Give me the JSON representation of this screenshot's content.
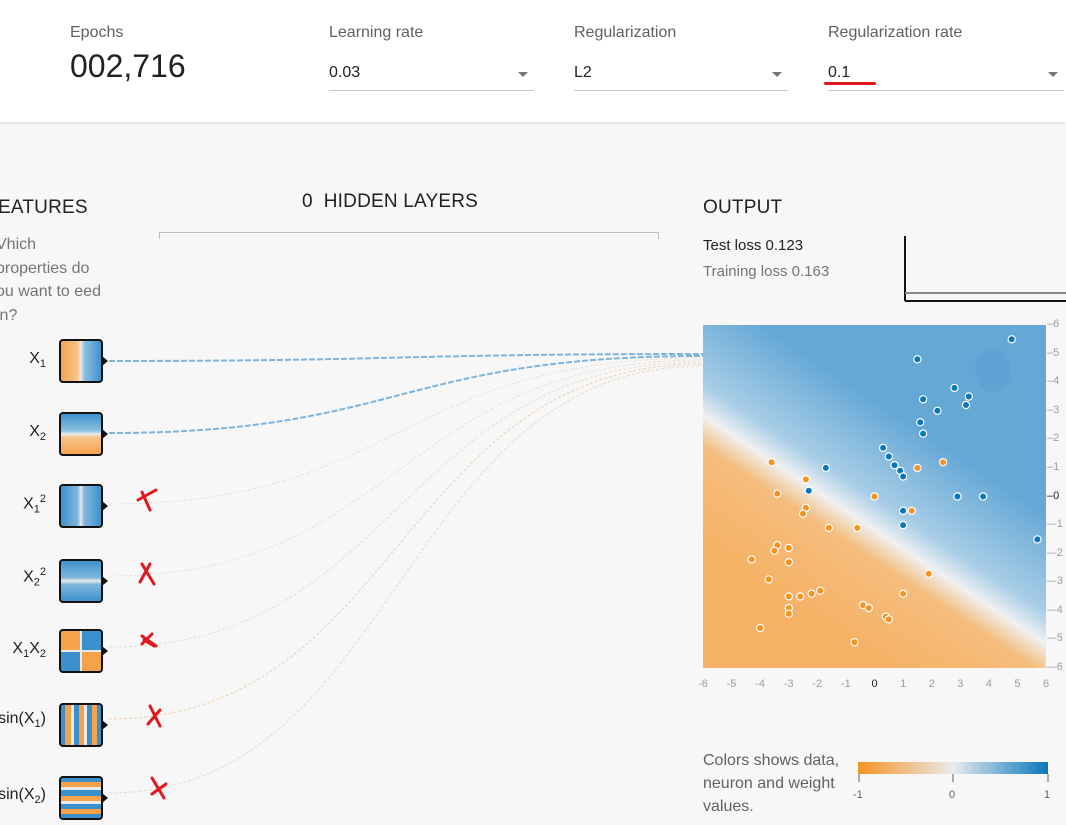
{
  "controls": {
    "epochs_label": "Epochs",
    "epochs_value": "002,716",
    "learning_rate_label": "Learning rate",
    "learning_rate_value": "0.03",
    "regularization_label": "Regularization",
    "regularization_value": "L2",
    "regularization_rate_label": "Regularization rate",
    "regularization_rate_value": "0.1"
  },
  "features": {
    "title": "EATURES",
    "question": "Vhich properties do ou want to eed in?",
    "items": [
      {
        "label_main": "X",
        "sub": "1",
        "sup": "",
        "selected": true
      },
      {
        "label_main": "X",
        "sub": "2",
        "sup": "",
        "selected": true
      },
      {
        "label_main": "X",
        "sub": "1",
        "sup": "2",
        "selected": false
      },
      {
        "label_main": "X",
        "sub": "2",
        "sup": "2",
        "selected": false
      },
      {
        "label_main": "X1X2",
        "sub": "",
        "sup": "",
        "selected": false
      },
      {
        "label_main": "sin(X1)",
        "sub": "",
        "sup": "",
        "selected": false
      },
      {
        "label_main": "sin(X2)",
        "sub": "",
        "sup": "",
        "selected": false
      }
    ]
  },
  "hidden_layers": {
    "count": "0",
    "label": "HIDDEN LAYERS"
  },
  "output": {
    "title": "OUTPUT",
    "test_loss": "Test loss 0.123",
    "training_loss": "Training loss 0.163"
  },
  "legend": {
    "text": "Colors shows data, neuron and weight values.",
    "min": "-1",
    "mid": "0",
    "max": "1"
  },
  "colors": {
    "orange": "#f59322",
    "blue": "#0877bd",
    "light_blue": "#65a8d6",
    "light_orange": "#f5b266",
    "annotation_red": "#e0181e"
  },
  "chart_data": {
    "type": "scatter",
    "x_ticks": [
      "-6",
      "-5",
      "-4",
      "-3",
      "-2",
      "-1",
      "0",
      "1",
      "2",
      "3",
      "4",
      "5",
      "6"
    ],
    "y_ticks": [
      "6",
      "5",
      "4",
      "3",
      "2",
      "1",
      "0",
      "-1",
      "-2",
      "-3",
      "-4",
      "-5",
      "-6"
    ],
    "xlim": [
      -6,
      6
    ],
    "ylim": [
      -6,
      6
    ],
    "series": [
      {
        "color": "#0877bd",
        "points": [
          [
            4.8,
            5.5
          ],
          [
            1.5,
            4.8
          ],
          [
            2.8,
            3.8
          ],
          [
            1.7,
            3.4
          ],
          [
            3.3,
            3.5
          ],
          [
            2.2,
            3.0
          ],
          [
            3.2,
            3.2
          ],
          [
            1.6,
            2.6
          ],
          [
            1.7,
            2.2
          ],
          [
            0.3,
            1.7
          ],
          [
            0.5,
            1.4
          ],
          [
            -1.7,
            1.0
          ],
          [
            0.7,
            1.1
          ],
          [
            0.9,
            0.9
          ],
          [
            1.0,
            0.7
          ],
          [
            -2.3,
            0.2
          ],
          [
            2.9,
            0.0
          ],
          [
            3.8,
            0.0
          ],
          [
            1.0,
            -0.5
          ],
          [
            1.0,
            -1.0
          ],
          [
            5.7,
            -1.5
          ]
        ]
      },
      {
        "color": "#f59322",
        "points": [
          [
            -3.6,
            1.2
          ],
          [
            2.4,
            1.2
          ],
          [
            1.5,
            1.0
          ],
          [
            -2.4,
            0.6
          ],
          [
            -3.4,
            0.1
          ],
          [
            -2.4,
            -0.4
          ],
          [
            0.0,
            0.0
          ],
          [
            1.3,
            -0.5
          ],
          [
            -2.5,
            -0.6
          ],
          [
            -1.6,
            -1.1
          ],
          [
            -0.6,
            -1.1
          ],
          [
            -3.4,
            -1.7
          ],
          [
            -3.0,
            -1.8
          ],
          [
            -3.5,
            -1.9
          ],
          [
            -4.3,
            -2.2
          ],
          [
            -3.0,
            -2.3
          ],
          [
            1.9,
            -2.7
          ],
          [
            -3.7,
            -2.9
          ],
          [
            -1.9,
            -3.3
          ],
          [
            -2.6,
            -3.5
          ],
          [
            -3.0,
            -3.5
          ],
          [
            -2.2,
            -3.4
          ],
          [
            1.0,
            -3.4
          ],
          [
            -0.4,
            -3.8
          ],
          [
            -0.2,
            -3.9
          ],
          [
            -3.0,
            -3.9
          ],
          [
            -3.0,
            -4.1
          ],
          [
            0.4,
            -4.2
          ],
          [
            0.5,
            -4.3
          ],
          [
            -4.0,
            -4.6
          ],
          [
            -0.7,
            -5.1
          ]
        ]
      }
    ]
  }
}
